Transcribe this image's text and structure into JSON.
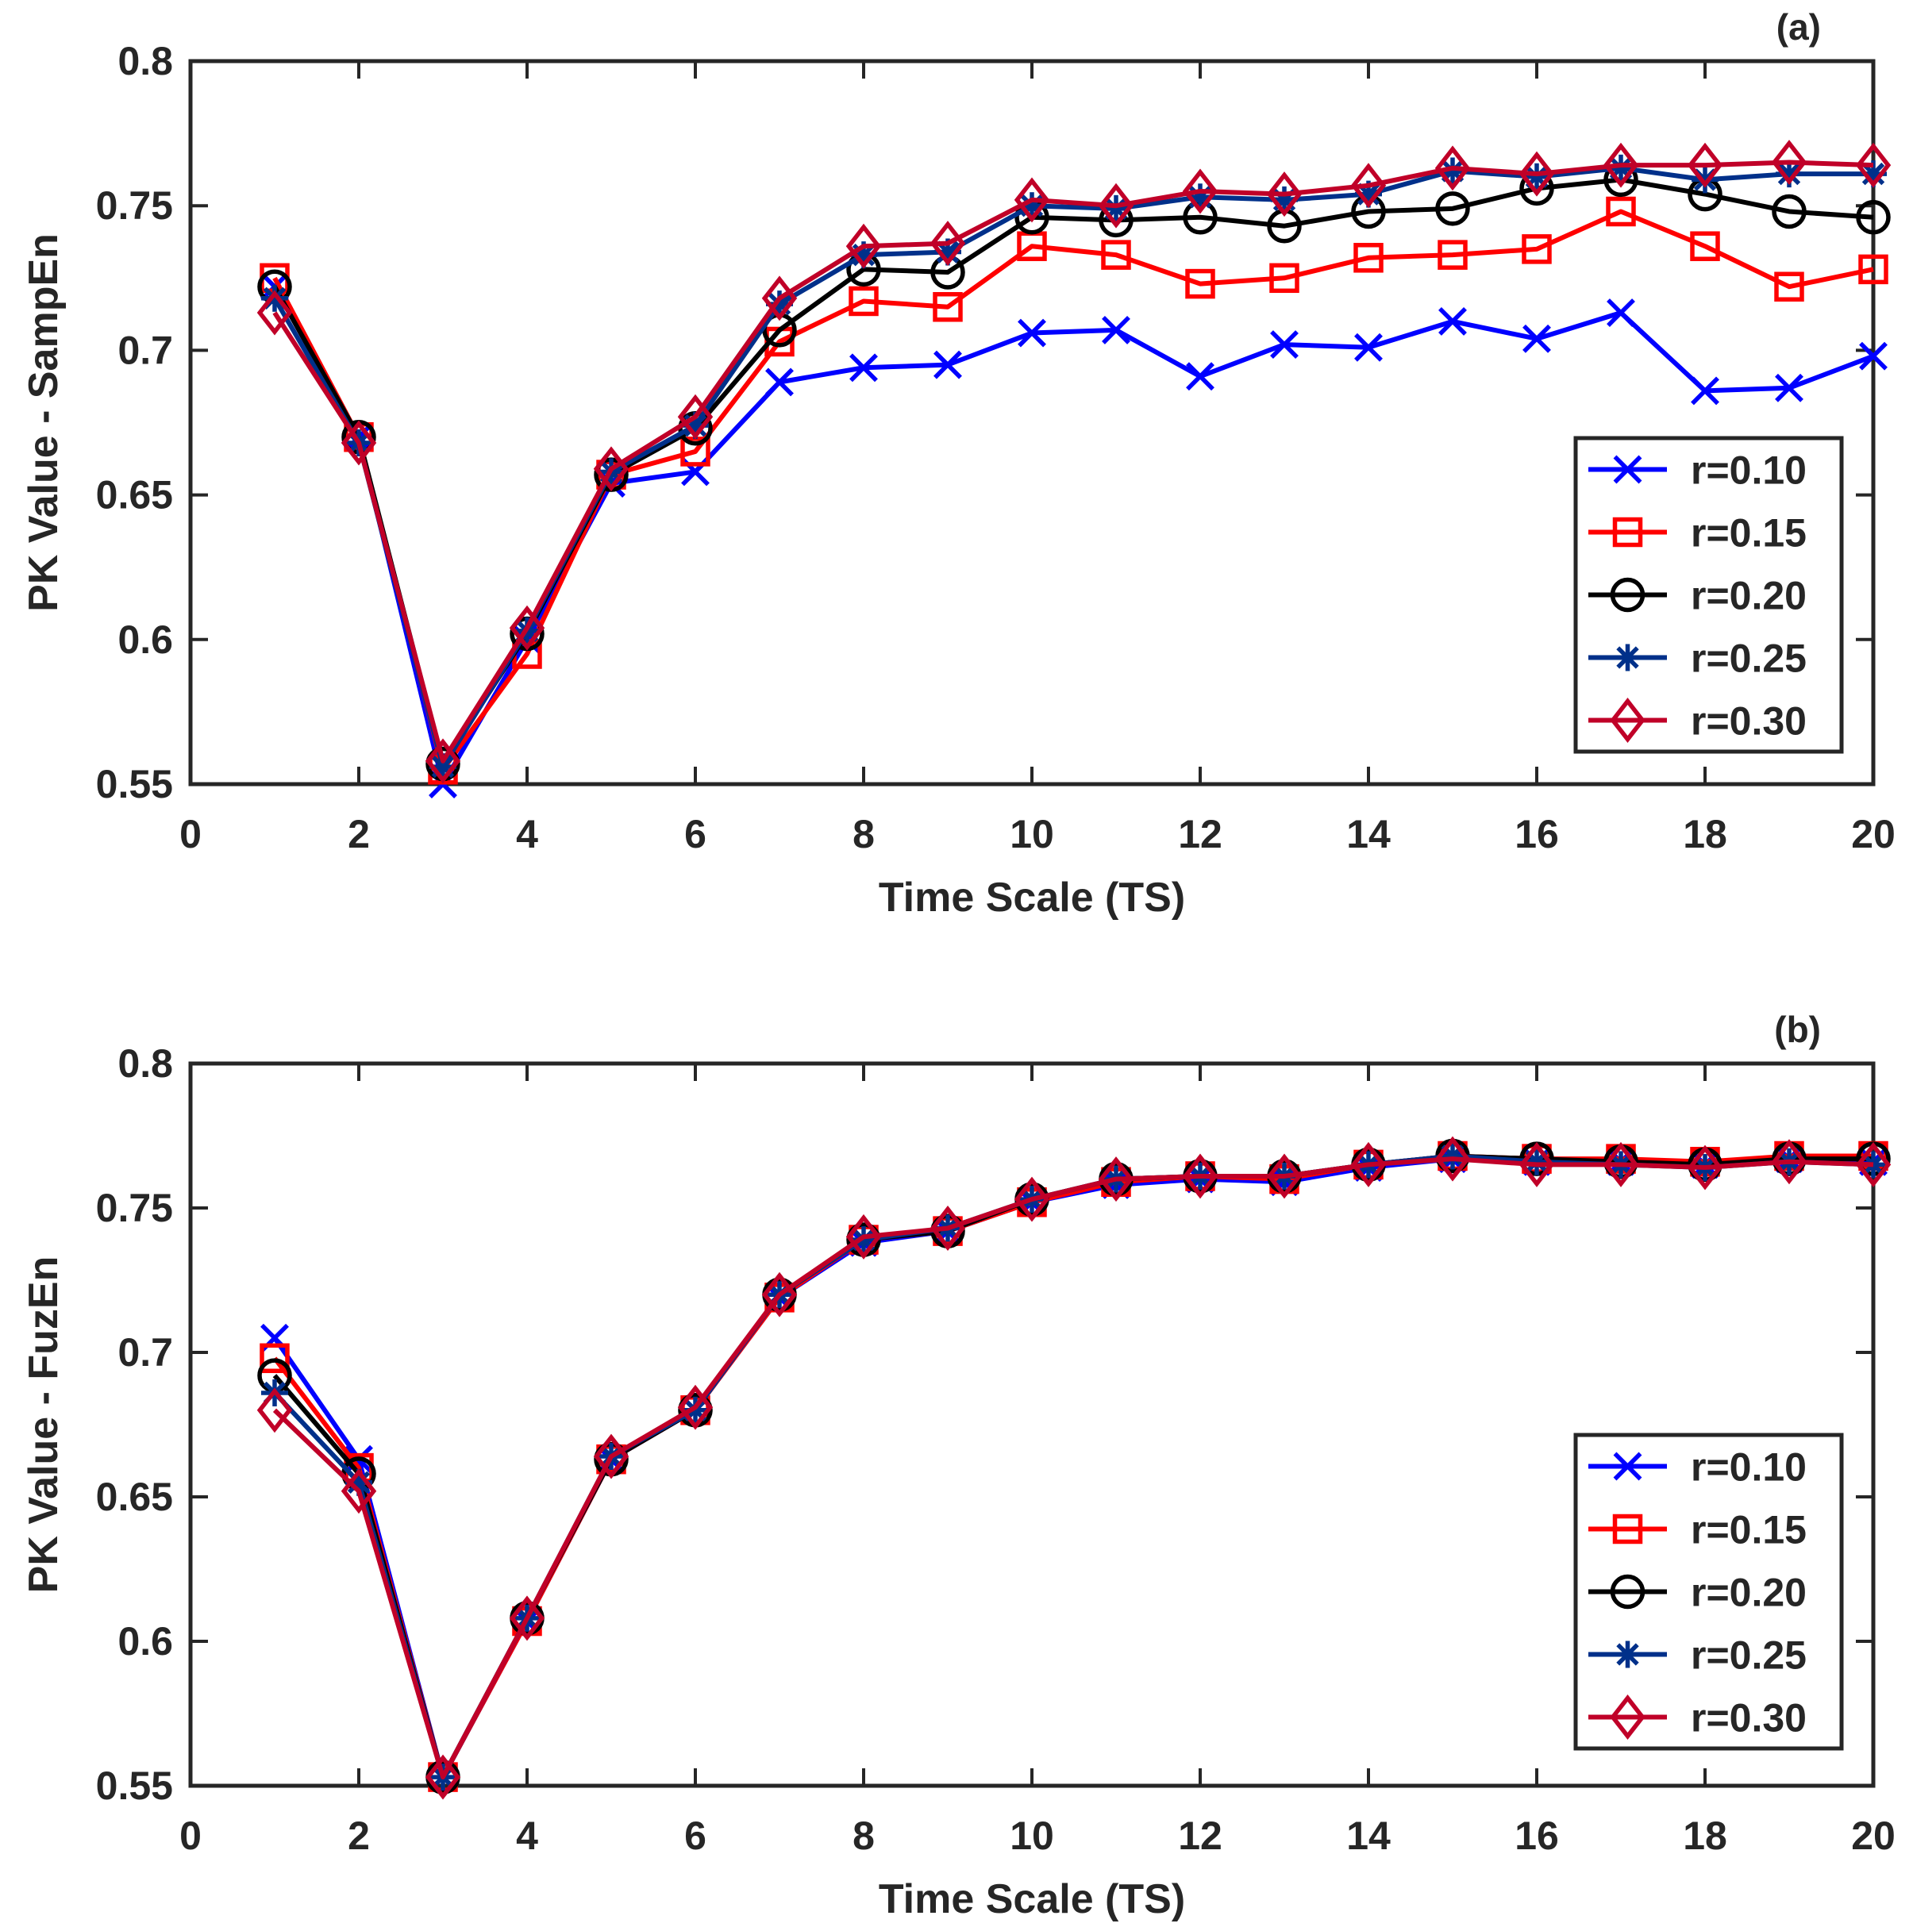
{
  "chart_data": [
    {
      "type": "line",
      "panel_label": "(a)",
      "xlabel": "Time Scale (TS)",
      "ylabel": "PK Value - SampEn",
      "xlim": [
        0,
        20
      ],
      "ylim": [
        0.55,
        0.8
      ],
      "xticks": [
        0,
        2,
        4,
        6,
        8,
        10,
        12,
        14,
        16,
        18,
        20
      ],
      "xtick_labels": [
        "0",
        "2",
        "4",
        "6",
        "8",
        "10",
        "12",
        "14",
        "16",
        "18",
        "20"
      ],
      "yticks": [
        0.55,
        0.6,
        0.65,
        0.7,
        0.75,
        0.8
      ],
      "ytick_labels": [
        "0.55",
        "0.6",
        "0.65",
        "0.7",
        "0.75",
        "0.8"
      ],
      "legend_position": "lower-right",
      "x": [
        1,
        2,
        3,
        4,
        5,
        6,
        7,
        8,
        9,
        10,
        11,
        12,
        13,
        14,
        15,
        16,
        17,
        18,
        19,
        20
      ],
      "series": [
        {
          "name": "r=0.10",
          "color": "#0000ff",
          "marker": "x",
          "values": [
            0.722,
            0.67,
            0.55,
            0.6,
            0.654,
            0.658,
            0.689,
            0.694,
            0.695,
            0.706,
            0.707,
            0.691,
            0.702,
            0.701,
            0.71,
            0.704,
            0.713,
            0.686,
            0.687,
            0.698
          ]
        },
        {
          "name": "r=0.15",
          "color": "#ff0000",
          "marker": "square",
          "values": [
            0.725,
            0.67,
            0.555,
            0.595,
            0.657,
            0.665,
            0.703,
            0.717,
            0.715,
            0.736,
            0.733,
            0.723,
            0.725,
            0.732,
            0.733,
            0.735,
            0.748,
            0.736,
            0.722,
            0.728
          ]
        },
        {
          "name": "r=0.20",
          "color": "#000000",
          "marker": "circle",
          "values": [
            0.722,
            0.67,
            0.557,
            0.602,
            0.657,
            0.673,
            0.707,
            0.728,
            0.727,
            0.746,
            0.745,
            0.746,
            0.743,
            0.748,
            0.749,
            0.756,
            0.759,
            0.754,
            0.748,
            0.746
          ]
        },
        {
          "name": "r=0.25",
          "color": "#00308a",
          "marker": "asterisk",
          "values": [
            0.718,
            0.668,
            0.556,
            0.603,
            0.658,
            0.674,
            0.716,
            0.733,
            0.734,
            0.75,
            0.749,
            0.753,
            0.752,
            0.754,
            0.762,
            0.76,
            0.763,
            0.759,
            0.761,
            0.761
          ]
        },
        {
          "name": "r=0.30",
          "color": "#c00028",
          "marker": "diamond",
          "values": [
            0.713,
            0.668,
            0.558,
            0.604,
            0.659,
            0.677,
            0.718,
            0.736,
            0.737,
            0.752,
            0.75,
            0.755,
            0.754,
            0.757,
            0.763,
            0.761,
            0.764,
            0.764,
            0.765,
            0.764
          ]
        }
      ]
    },
    {
      "type": "line",
      "panel_label": "(b)",
      "xlabel": "Time Scale (TS)",
      "ylabel": "PK Value - FuzEn",
      "xlim": [
        0,
        20
      ],
      "ylim": [
        0.55,
        0.8
      ],
      "xticks": [
        0,
        2,
        4,
        6,
        8,
        10,
        12,
        14,
        16,
        18,
        20
      ],
      "xtick_labels": [
        "0",
        "2",
        "4",
        "6",
        "8",
        "10",
        "12",
        "14",
        "16",
        "18",
        "20"
      ],
      "yticks": [
        0.55,
        0.6,
        0.65,
        0.7,
        0.75,
        0.8
      ],
      "ytick_labels": [
        "0.55",
        "0.6",
        "0.65",
        "0.7",
        "0.75",
        "0.8"
      ],
      "legend_position": "lower-right",
      "x": [
        1,
        2,
        3,
        4,
        5,
        6,
        7,
        8,
        9,
        10,
        11,
        12,
        13,
        14,
        15,
        16,
        17,
        18,
        19,
        20
      ],
      "series": [
        {
          "name": "r=0.10",
          "color": "#0000ff",
          "marker": "x",
          "values": [
            0.705,
            0.663,
            0.553,
            0.607,
            0.663,
            0.68,
            0.719,
            0.738,
            0.742,
            0.752,
            0.758,
            0.76,
            0.759,
            0.764,
            0.767,
            0.766,
            0.766,
            0.765,
            0.767,
            0.766
          ]
        },
        {
          "name": "r=0.15",
          "color": "#ff0000",
          "marker": "square",
          "values": [
            0.698,
            0.66,
            0.553,
            0.607,
            0.663,
            0.68,
            0.719,
            0.739,
            0.742,
            0.752,
            0.759,
            0.761,
            0.76,
            0.765,
            0.768,
            0.767,
            0.767,
            0.766,
            0.768,
            0.768
          ]
        },
        {
          "name": "r=0.20",
          "color": "#000000",
          "marker": "circle",
          "values": [
            0.692,
            0.658,
            0.553,
            0.608,
            0.663,
            0.68,
            0.72,
            0.739,
            0.742,
            0.753,
            0.76,
            0.761,
            0.761,
            0.765,
            0.768,
            0.767,
            0.766,
            0.765,
            0.767,
            0.767
          ]
        },
        {
          "name": "r=0.25",
          "color": "#00308a",
          "marker": "asterisk",
          "values": [
            0.686,
            0.655,
            0.553,
            0.608,
            0.664,
            0.68,
            0.72,
            0.739,
            0.743,
            0.753,
            0.76,
            0.761,
            0.761,
            0.765,
            0.768,
            0.766,
            0.765,
            0.764,
            0.766,
            0.765
          ]
        },
        {
          "name": "r=0.30",
          "color": "#c00028",
          "marker": "diamond",
          "values": [
            0.68,
            0.652,
            0.553,
            0.608,
            0.664,
            0.681,
            0.72,
            0.74,
            0.743,
            0.753,
            0.76,
            0.761,
            0.761,
            0.765,
            0.767,
            0.765,
            0.765,
            0.764,
            0.766,
            0.765
          ]
        }
      ]
    }
  ]
}
